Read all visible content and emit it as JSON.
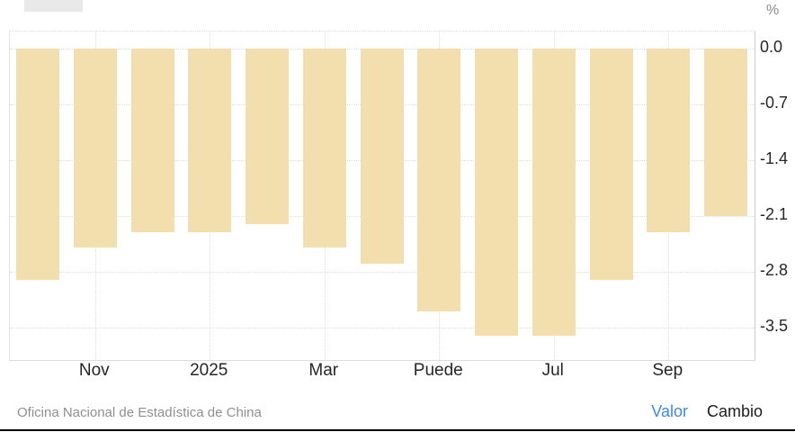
{
  "header": {
    "placeholder_button": ""
  },
  "chart_data": {
    "type": "bar",
    "title": "",
    "y_axis_unit": "%",
    "values": [
      -2.9,
      -2.5,
      -2.3,
      -2.3,
      -2.2,
      -2.5,
      -2.7,
      -3.3,
      -3.6,
      -3.6,
      -2.9,
      -2.3,
      -2.1
    ],
    "x_ticks": [
      {
        "label": "Nov",
        "bar": 1
      },
      {
        "label": "2025",
        "bar": 3
      },
      {
        "label": "Mar",
        "bar": 5
      },
      {
        "label": "Puede",
        "bar": 7
      },
      {
        "label": "Jul",
        "bar": 9
      },
      {
        "label": "Sep",
        "bar": 11
      }
    ],
    "y_ticks": [
      0.0,
      -0.7,
      -1.4,
      -2.1,
      -2.8,
      -3.5
    ],
    "y_tick_labels": [
      "0.0",
      "-0.7",
      "-1.4",
      "-2.1",
      "-2.8",
      "-3.5"
    ],
    "ylim": [
      0.22,
      -3.91
    ],
    "grid": true,
    "legend": "none",
    "bar_color": "#f3deae",
    "gridline_color": "#dedede"
  },
  "footer": {
    "source": "Oficina Nacional de Estadística de China",
    "links": [
      {
        "label": "Valor",
        "color": "#3d8be0",
        "active": true
      },
      {
        "label": "Cambio",
        "color": "#1c1c1c",
        "active": false
      }
    ]
  }
}
